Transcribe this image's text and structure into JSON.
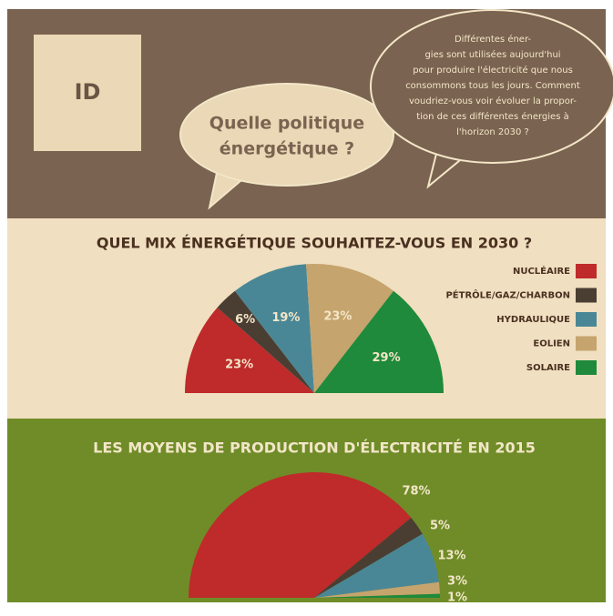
{
  "header": {
    "badge": "ID",
    "question": [
      "Quelle politique",
      "énergétique ?"
    ],
    "intro": [
      "Différentes éner-",
      "gies sont utilisées aujourd'hui",
      "pour produire l'électricité que nous",
      "consommons tous les jours. Comment",
      "voudriez-vous voir évoluer la propor-",
      "tion de ces différentes énergies à",
      "l'horizon 2030 ?"
    ]
  },
  "chart_data": [
    {
      "type": "pie",
      "half": true,
      "legend": true,
      "title": "QUEL MIX ÉNERGÉTIQUE SOUHAITEZ-VOUS EN 2030 ?",
      "categories": [
        "NUCLÉAIRE",
        "PÉTRÔLE/GAZ/CHARBON",
        "HYDRAULIQUE",
        "EOLIEN",
        "SOLAIRE"
      ],
      "values": [
        23,
        6,
        19,
        23,
        29
      ],
      "value_labels": [
        "23%",
        "6%",
        "19%",
        "23%",
        "29%"
      ],
      "colors": [
        "#bf2a2a",
        "#4a3e33",
        "#4a8796",
        "#c6a46e",
        "#1f8a3b"
      ]
    },
    {
      "type": "pie",
      "half": true,
      "legend": false,
      "title": "LES MOYENS DE PRODUCTION D'ÉLECTRICITÉ EN 2015",
      "values": [
        78,
        5,
        13,
        3,
        1
      ],
      "value_labels": [
        "78%",
        "5%",
        "13%",
        "3%",
        "1%"
      ],
      "colors": [
        "#bf2a2a",
        "#4a3e33",
        "#4a8796",
        "#c6a46e",
        "#1f8a3b"
      ]
    }
  ]
}
